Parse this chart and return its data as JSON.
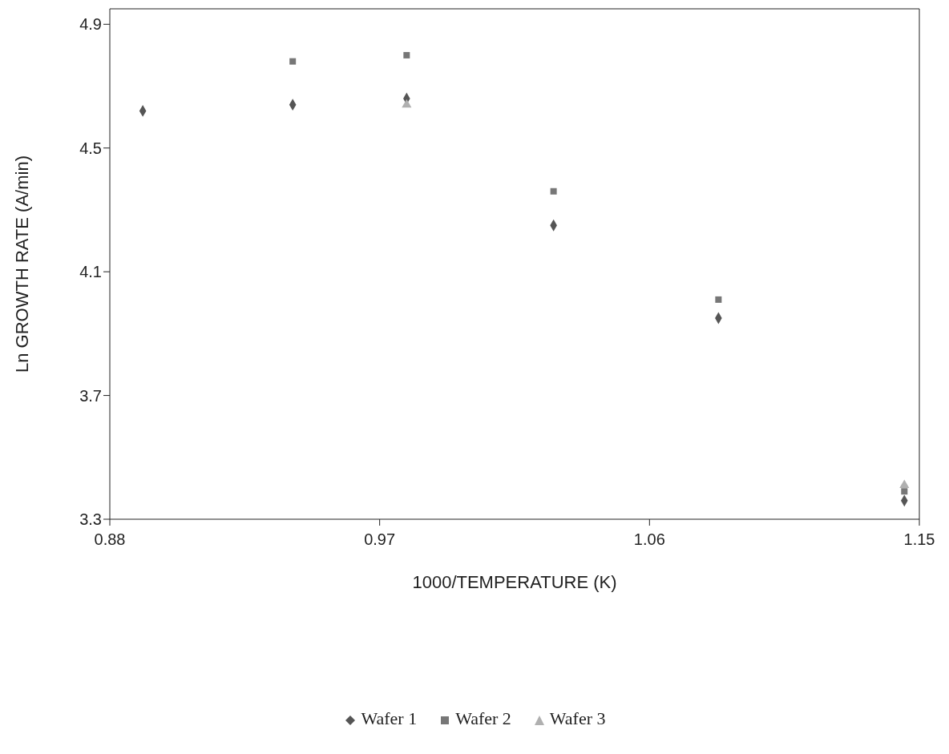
{
  "chart_data": {
    "type": "scatter",
    "xlabel": "1000/TEMPERATURE (K)",
    "ylabel": "Ln GROWTH RATE (A/min)",
    "x": [
      0.891,
      0.941,
      0.979,
      1.028,
      1.083,
      1.145
    ],
    "series": [
      {
        "name": "Wafer 1",
        "color": "#555555",
        "marker": "diamond",
        "values": [
          4.62,
          4.64,
          4.66,
          4.25,
          3.95,
          3.36
        ]
      },
      {
        "name": "Wafer 2",
        "color": "#777777",
        "marker": "square",
        "values": [
          null,
          4.78,
          4.8,
          4.36,
          4.01,
          3.39
        ]
      },
      {
        "name": "Wafer 3",
        "color": "#b0b0b0",
        "marker": "triangle",
        "values": [
          null,
          null,
          4.64,
          null,
          null,
          3.41
        ]
      }
    ],
    "xlim": [
      0.88,
      1.15
    ],
    "xticks": [
      0.88,
      0.97,
      1.06,
      1.15
    ],
    "ylim": [
      3.3,
      4.95
    ],
    "yticks": [
      3.3,
      3.7,
      4.1,
      4.5,
      4.9
    ],
    "legend": "bottom"
  }
}
